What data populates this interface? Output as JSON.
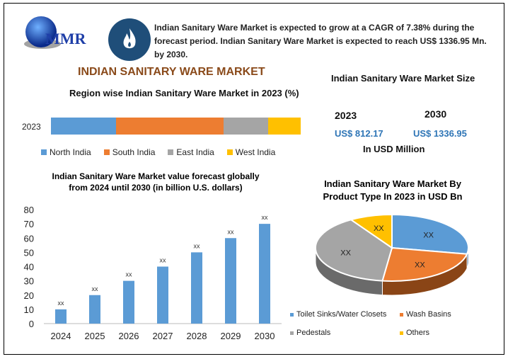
{
  "logo": {
    "text": "MMR"
  },
  "summary": "Indian Sanitary Ware Market is expected to grow at a CAGR of 7.38% during the forecast period. Indian Sanitary Ware Market is expected to reach US$ 1336.95 Mn. by 2030.",
  "main_title": "INDIAN SANITARY WARE MARKET",
  "market_size": {
    "title": "Indian Sanitary Ware Market Size",
    "year1": "2023",
    "value1": "US$ 812.17",
    "year2": "2030",
    "value2": "US$ 1336.95",
    "unit": "In USD Million"
  },
  "chart_data": [
    {
      "type": "bar",
      "orientation": "horizontal-stacked",
      "title": "Region wise Indian Sanitary Ware Market in 2023 (%)",
      "categories": [
        "2023"
      ],
      "series": [
        {
          "name": "North India",
          "values": [
            26
          ],
          "color": "#5b9bd5"
        },
        {
          "name": "South India",
          "values": [
            43
          ],
          "color": "#ed7d31"
        },
        {
          "name": "East India",
          "values": [
            18
          ],
          "color": "#a5a5a5"
        },
        {
          "name": "West India",
          "values": [
            13
          ],
          "color": "#ffc000"
        }
      ],
      "legend": "bottom"
    },
    {
      "type": "bar",
      "title": "Indian Sanitary Ware Market  value forecast globally from 2024 until 2030 (in billion U.S. dollars)",
      "categories": [
        "2024",
        "2025",
        "2026",
        "2027",
        "2028",
        "2029",
        "2030"
      ],
      "values": [
        10,
        20,
        30,
        40,
        50,
        60,
        70
      ],
      "data_labels": [
        "xx",
        "xx",
        "xx",
        "xx",
        "xx",
        "xx",
        "xx"
      ],
      "yticks": [
        "0",
        "10",
        "20",
        "30",
        "40",
        "50",
        "60",
        "70",
        "80"
      ],
      "ylim": [
        0,
        80
      ],
      "color": "#5b9bd5",
      "grid": false
    },
    {
      "type": "pie",
      "style": "3d",
      "title": "Indian Sanitary Ware Market By Product Type  In 2023 in USD Bn",
      "series": [
        {
          "name": "Toilet Sinks/Water Closets",
          "value": 28,
          "label": "XX",
          "color": "#5b9bd5"
        },
        {
          "name": "Wash Basins",
          "value": 24,
          "label": "XX",
          "color": "#ed7d31"
        },
        {
          "name": "Pedestals",
          "value": 39,
          "label": "XX",
          "color": "#a5a5a5"
        },
        {
          "name": "Others",
          "value": 9,
          "label": "XX",
          "color": "#ffc000"
        }
      ],
      "legend": "bottom"
    }
  ]
}
